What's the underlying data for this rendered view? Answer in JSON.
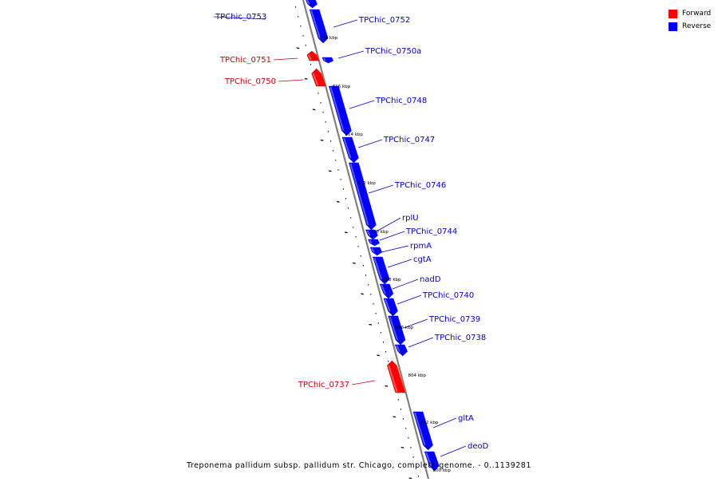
{
  "colors": {
    "forward": "#ff0000",
    "reverse": "#0000ff",
    "label_forward": "#cc0000",
    "label_reverse": "#0000cc",
    "axis": "#808080"
  },
  "legend": {
    "forward": {
      "label": "Forward",
      "color": "#ff0000"
    },
    "reverse": {
      "label": "Reverse",
      "color": "#0000ff"
    }
  },
  "caption": "Treponema pallidum subsp. pallidum str. Chicago, complete genome. - 0..1139281",
  "axis_ticks": [
    "818 kbp",
    "816 kbp",
    "814 kbp",
    "812 kbp",
    "810 kbp",
    "808 kbp",
    "806 kbp",
    "804 kbp",
    "802 kbp",
    "800 kbp"
  ],
  "features": [
    {
      "name": "TPChic_0753",
      "strand": "reverse"
    },
    {
      "name": "TPChic_0752",
      "strand": "reverse"
    },
    {
      "name": "TPChic_0751",
      "strand": "forward"
    },
    {
      "name": "TPChic_0750a",
      "strand": "reverse"
    },
    {
      "name": "TPChic_0750",
      "strand": "forward"
    },
    {
      "name": "TPChic_0748",
      "strand": "reverse"
    },
    {
      "name": "TPChic_0747",
      "strand": "reverse"
    },
    {
      "name": "TPChic_0746",
      "strand": "reverse"
    },
    {
      "name": "rplU",
      "strand": "reverse"
    },
    {
      "name": "TPChic_0744",
      "strand": "reverse"
    },
    {
      "name": "rpmA",
      "strand": "reverse"
    },
    {
      "name": "cgtA",
      "strand": "reverse"
    },
    {
      "name": "nadD",
      "strand": "reverse"
    },
    {
      "name": "TPChic_0740",
      "strand": "reverse"
    },
    {
      "name": "TPChic_0739",
      "strand": "reverse"
    },
    {
      "name": "TPChic_0738",
      "strand": "reverse"
    },
    {
      "name": "TPChic_0737",
      "strand": "forward"
    },
    {
      "name": "gltA",
      "strand": "reverse"
    },
    {
      "name": "deoD",
      "strand": "reverse"
    }
  ]
}
